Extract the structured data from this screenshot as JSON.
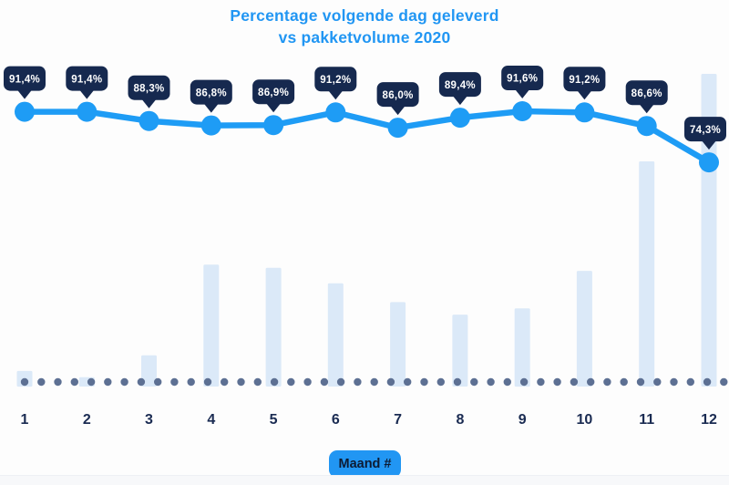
{
  "title": {
    "line1": "Percentage volgende dag geleverd",
    "line2": "vs pakketvolume 2020"
  },
  "x_axis": {
    "badge_label": "Maand #",
    "tick_labels": [
      "1",
      "2",
      "3",
      "4",
      "5",
      "6",
      "7",
      "8",
      "9",
      "10",
      "11",
      "12"
    ]
  },
  "chart_data": {
    "type": "combo",
    "title": "Percentage volgende dag geleverd vs pakketvolume 2020",
    "xlabel": "Maand #",
    "ylabel": "",
    "categories": [
      "1",
      "2",
      "3",
      "4",
      "5",
      "6",
      "7",
      "8",
      "9",
      "10",
      "11",
      "12"
    ],
    "series": [
      {
        "name": "Percentage volgende dag geleverd",
        "type": "line",
        "unit": "%",
        "values": [
          91.4,
          91.4,
          88.3,
          86.8,
          86.9,
          91.2,
          86.0,
          89.4,
          91.6,
          91.2,
          86.6,
          74.3
        ],
        "labels": [
          "91,4%",
          "91,4%",
          "88,3%",
          "86,8%",
          "86,9%",
          "91,2%",
          "86,0%",
          "89,4%",
          "91,6%",
          "91,2%",
          "86,6%",
          "74,3%"
        ]
      },
      {
        "name": "Pakketvolume 2020",
        "type": "bar",
        "unit": "relative volume, no value axis shown (tallest month = 100)",
        "values": [
          5,
          3,
          10,
          39,
          38,
          33,
          27,
          23,
          25,
          37,
          72,
          100
        ]
      }
    ],
    "legend": "none",
    "grid": false,
    "baseline_style": "dotted",
    "line_value_range_shown": [
      74.3,
      91.6
    ]
  },
  "colors": {
    "background": "#fdfdfd",
    "accent_blue": "#2196f3",
    "line_blue": "#1e9cf5",
    "bar_fill": "#dbe9f8",
    "tooltip_bg": "#16294f",
    "tooltip_text": "#ffffff",
    "tick_label": "#1a2b52",
    "dot": "#5d7093",
    "badge_bg": "#2196f3",
    "badge_text": "#0d1b33"
  }
}
